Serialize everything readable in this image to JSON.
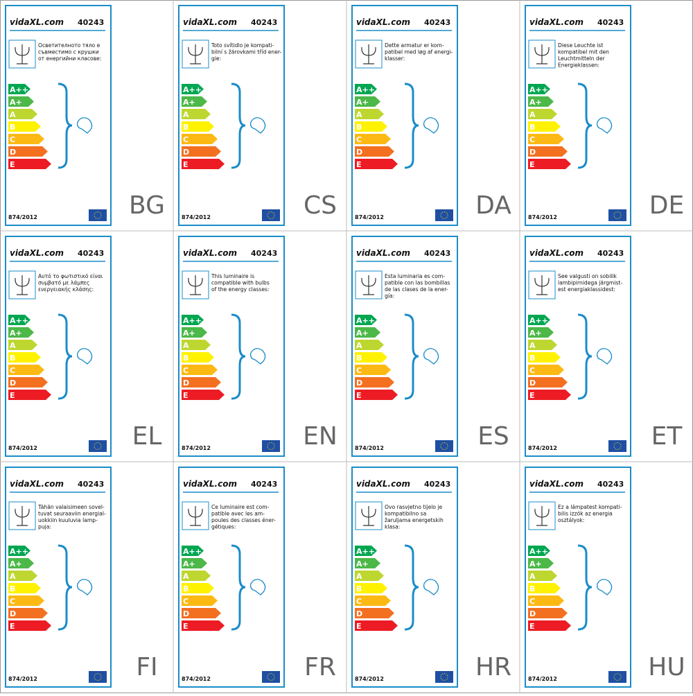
{
  "brand": "vidaXL.com",
  "model": "40243",
  "regulation": "874/2012",
  "classes": [
    "A++",
    "A+",
    "A",
    "B",
    "C",
    "D",
    "E"
  ],
  "labels": [
    {
      "lang": "BG",
      "text": [
        "Осветителното тяло е",
        "съвместимо с крушки",
        "от енергийни класове:"
      ]
    },
    {
      "lang": "CS",
      "text": [
        "Toto svítidlo je kompati-",
        "bilní s žárovkami tříd ener-",
        "gie:"
      ]
    },
    {
      "lang": "DA",
      "text": [
        "Dette armatur er kom-",
        "patibel med løg af energi-",
        "klasser:"
      ]
    },
    {
      "lang": "DE",
      "text": [
        "Diese Leuchte ist",
        "kompatibel mit den",
        "Leuchtmitteln der",
        "Energieklassen:"
      ]
    },
    {
      "lang": "EL",
      "text": [
        "Αυτό το φωτιστικό είναι",
        "συμβατό με λάμπες",
        "ενεργειακής κλάσης:"
      ]
    },
    {
      "lang": "EN",
      "text": [
        "This luminaire is",
        "compatible with bulbs",
        "of the energy classes:"
      ]
    },
    {
      "lang": "ES",
      "text": [
        "Esta luminaria es com-",
        "patible con las bombillas",
        "de las clases de la ener-",
        "gía:"
      ]
    },
    {
      "lang": "ET",
      "text": [
        "See valgusti on sobilik",
        "lambipirnidega järgmist-",
        "est energiaklassidest:"
      ]
    },
    {
      "lang": "FI",
      "text": [
        "Tähän valaisimeen sovel-",
        "tuvat seuraaviin energial-",
        "uokkiin kuuluvia lamp-",
        "puja:"
      ]
    },
    {
      "lang": "FR",
      "text": [
        "Ce luminaire est com-",
        "patible avec les am-",
        "poules des classes éner-",
        "gétiques:"
      ]
    },
    {
      "lang": "HR",
      "text": [
        "Ovo rasvjetno tijelo je",
        "kompatibilno sa",
        "žaruljama energetskih",
        "klasa:"
      ]
    },
    {
      "lang": "HU",
      "text": [
        "Ez a lámpatest kompati-",
        "bilis izzók az energia",
        "osztályok:"
      ]
    }
  ]
}
